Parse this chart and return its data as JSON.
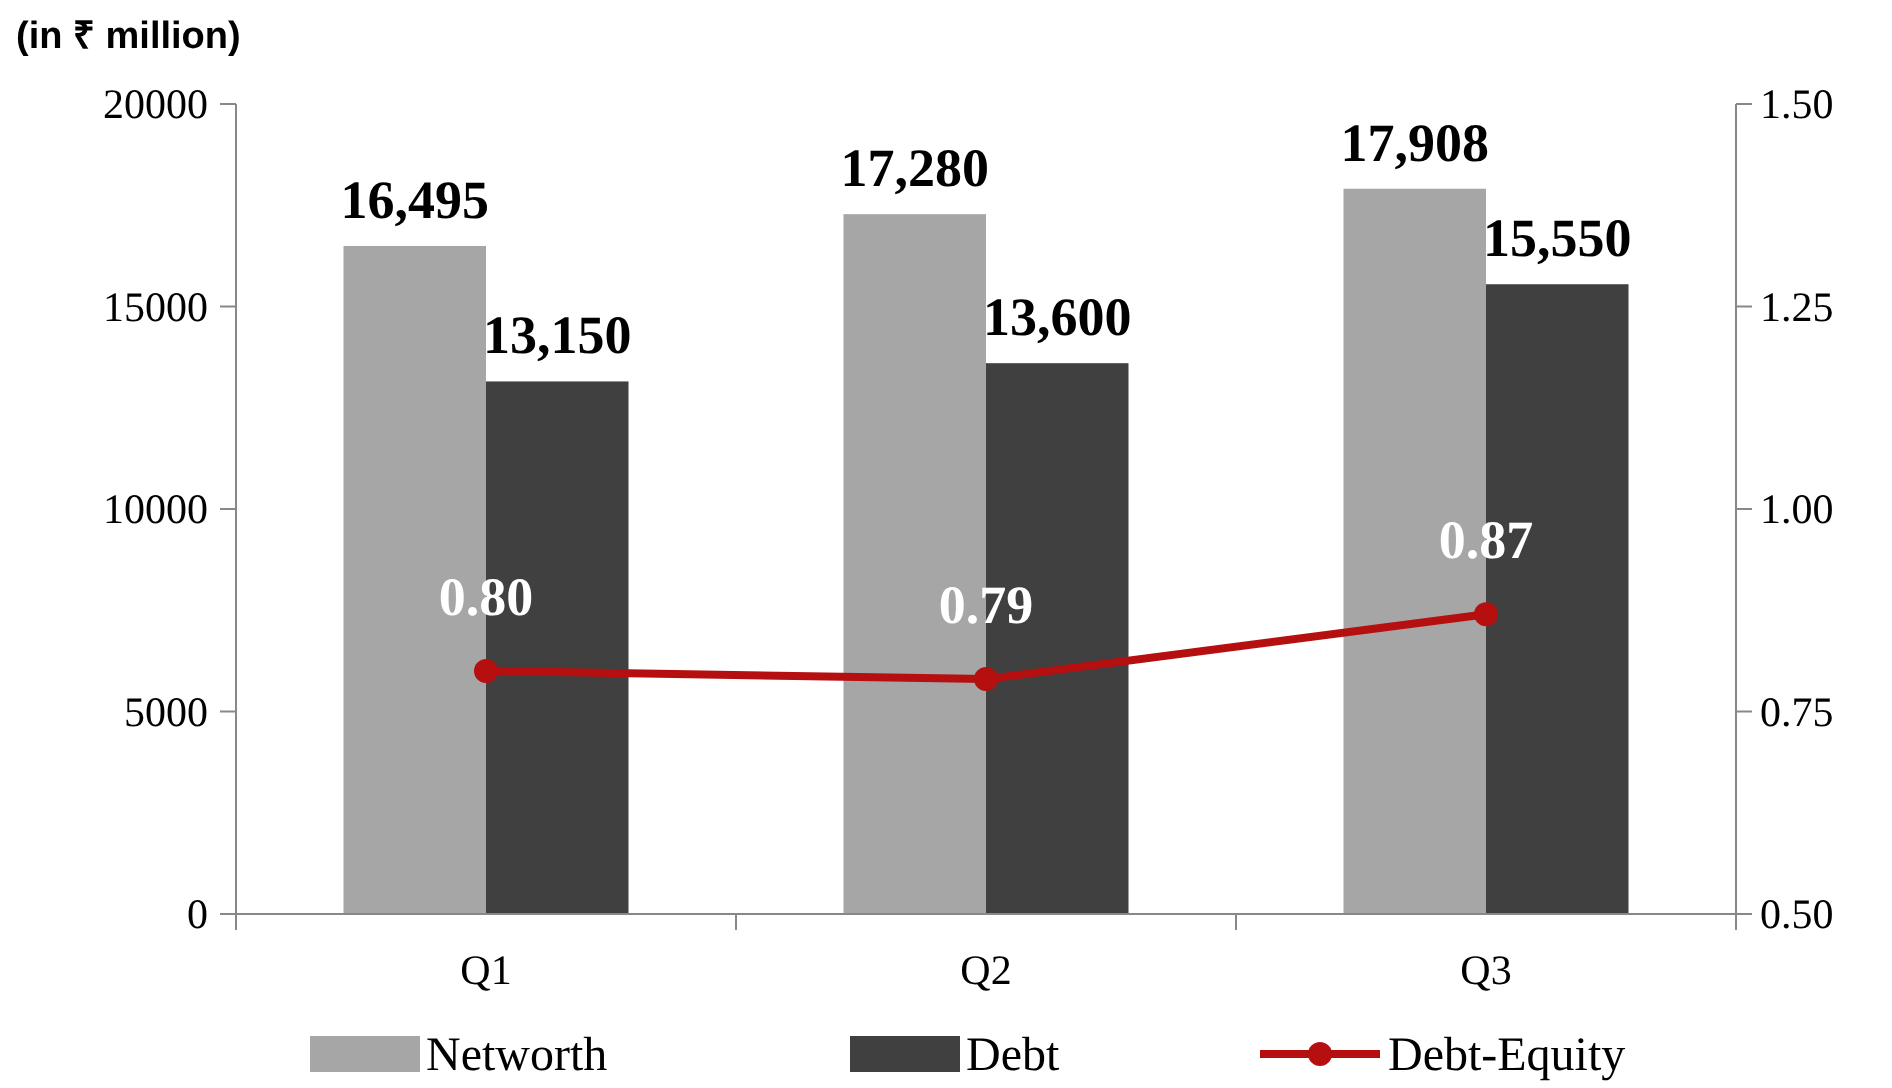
{
  "chart_data": {
    "type": "bar",
    "title": "(in ₹ million)",
    "categories": [
      "Q1",
      "Q2",
      "Q3"
    ],
    "series": [
      {
        "name": "Networth",
        "color": "#a6a6a6",
        "values": [
          16495,
          17280,
          17908
        ],
        "value_labels": [
          "16,495",
          "17,280",
          "17,908"
        ]
      },
      {
        "name": "Debt",
        "color": "#404040",
        "values": [
          13150,
          13600,
          15550
        ],
        "value_labels": [
          "13,150",
          "13,600",
          "15,550"
        ]
      },
      {
        "name": "Debt-Equity",
        "type": "line",
        "axis": "y2",
        "color": "#b50f0f",
        "values": [
          0.8,
          0.79,
          0.87
        ],
        "value_labels": [
          "0.80",
          "0.79",
          "0.87"
        ]
      }
    ],
    "ylim": [
      0,
      20000
    ],
    "yticks": [
      0,
      5000,
      10000,
      15000,
      20000
    ],
    "y2lim": [
      0.5,
      1.5
    ],
    "y2ticks": [
      {
        "value": 0.5,
        "label": "0.50"
      },
      {
        "value": 0.75,
        "label": "0.75"
      },
      {
        "value": 1.0,
        "label": "1.00"
      },
      {
        "value": 1.25,
        "label": "1.25"
      },
      {
        "value": 1.5,
        "label": "1.50"
      }
    ],
    "grid": false,
    "legend": "bottom",
    "marker": "circle"
  }
}
